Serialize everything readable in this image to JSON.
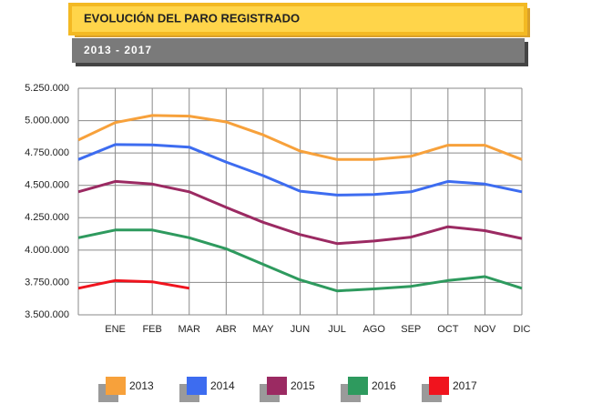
{
  "chart_data": {
    "type": "line",
    "title": "EVOLUCIÓN DEL PARO REGISTRADO",
    "subtitle": "2013 - 2017",
    "categories": [
      null,
      "ENE",
      "FEB",
      "MAR",
      "ABR",
      "MAY",
      "JUN",
      "JUL",
      "AGO",
      "SEP",
      "OCT",
      "NOV",
      "DIC"
    ],
    "series": [
      {
        "name": "2013",
        "color": "#f7a13b",
        "values": [
          4850000,
          4985000,
          5040000,
          5035000,
          4990000,
          4890000,
          4765000,
          4700000,
          4700000,
          4725000,
          4810000,
          4810000,
          4700000
        ]
      },
      {
        "name": "2014",
        "color": "#3d6cf0",
        "values": [
          4700000,
          4815000,
          4812000,
          4795000,
          4680000,
          4575000,
          4455000,
          4425000,
          4430000,
          4450000,
          4530000,
          4510000,
          4450000
        ]
      },
      {
        "name": "2015",
        "color": "#9b2a62",
        "values": [
          4450000,
          4530000,
          4510000,
          4450000,
          4330000,
          4215000,
          4120000,
          4050000,
          4070000,
          4100000,
          4180000,
          4150000,
          4090000
        ]
      },
      {
        "name": "2016",
        "color": "#2e9a5e",
        "values": [
          4095000,
          4155000,
          4155000,
          4095000,
          4010000,
          3890000,
          3770000,
          3685000,
          3700000,
          3720000,
          3765000,
          3795000,
          3705000
        ]
      },
      {
        "name": "2017",
        "color": "#f0141e",
        "values": [
          3705000,
          3765000,
          3755000,
          3705000,
          null,
          null,
          null,
          null,
          null,
          null,
          null,
          null,
          null
        ]
      }
    ],
    "ylim": [
      3500000,
      5250000
    ],
    "yticks": [
      {
        "value": 3500000,
        "label": "3.500.000"
      },
      {
        "value": 3750000,
        "label": "3.750.000"
      },
      {
        "value": 4000000,
        "label": "4.000.000"
      },
      {
        "value": 4250000,
        "label": "4.250.000"
      },
      {
        "value": 4500000,
        "label": "4.500.000"
      },
      {
        "value": 4750000,
        "label": "4.750.000"
      },
      {
        "value": 5000000,
        "label": "5.000.000"
      },
      {
        "value": 5250000,
        "label": "5.250.000"
      }
    ],
    "grid": true,
    "legend": "bottom"
  }
}
